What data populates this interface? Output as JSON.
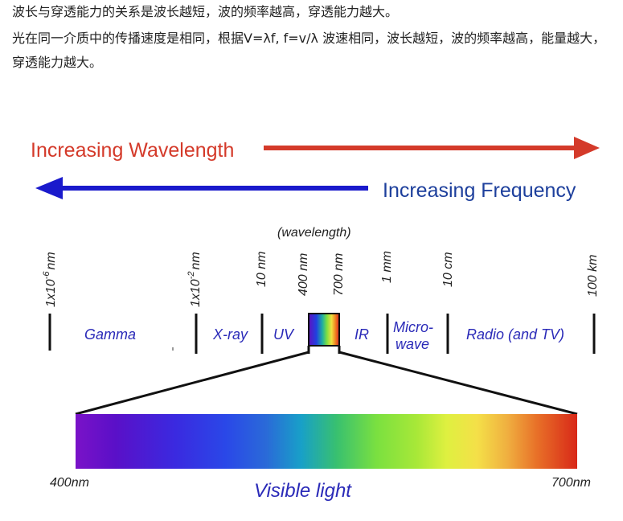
{
  "text": {
    "line1": "波长与穿透能力的关系是波长越短，波的频率越高，穿透能力越大。",
    "line2": "光在同一介质中的传播速度是相同，根据V=λf, f=v/λ   波速相同，波长越短，波的频率越高，能量越大，穿透能力越大。"
  },
  "diagram": {
    "increasing_wavelength": "Increasing Wavelength",
    "increasing_frequency": "Increasing Frequency",
    "wavelength_caption": "(wavelength)",
    "ticks": [
      "1x10",
      "-6",
      "nm",
      "1x10",
      "-2",
      "nm",
      "10 nm",
      "400 nm",
      "700 nm",
      "1 mm",
      "10 cm",
      "100 km"
    ],
    "bands": [
      "Gamma",
      "X-ray",
      "UV",
      "IR",
      "Micro-",
      "wave",
      "Radio (and TV)"
    ],
    "visible_start": "400nm",
    "visible_end": "700nm",
    "visible_light": "Visible light"
  },
  "colors": {
    "wavelength_arrow": "#d43a2a",
    "frequency_arrow": "#1a1acc",
    "band_text": "#2a2ab8",
    "frequency_text": "#1d3f9c"
  }
}
